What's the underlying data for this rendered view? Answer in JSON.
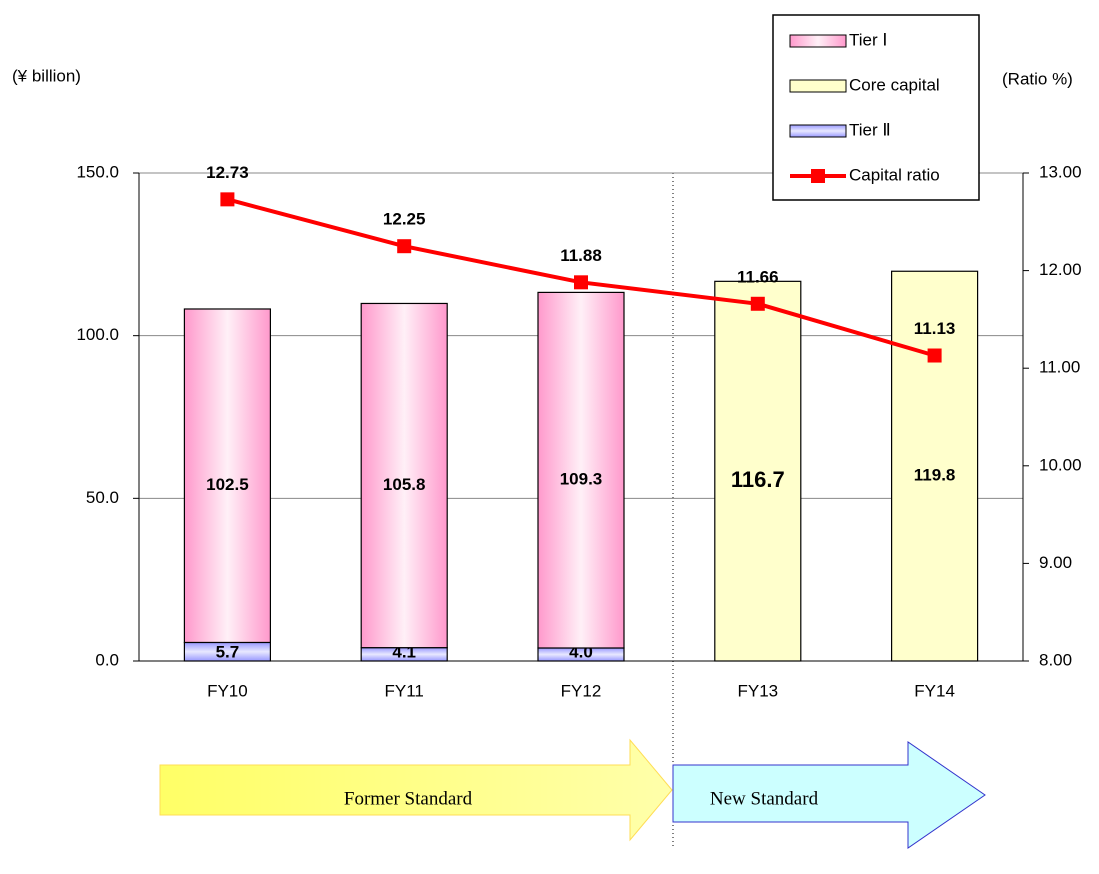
{
  "chart_data": {
    "type": "bar",
    "y_label": "(¥ billion)",
    "y2_label": "(Ratio %)",
    "categories": [
      "FY10",
      "FY11",
      "FY12",
      "FY13",
      "FY14"
    ],
    "series": [
      {
        "name": "Tier Ⅰ",
        "color": "#ff99cc",
        "values": [
          102.5,
          105.8,
          109.3,
          null,
          null
        ],
        "value_labels": [
          "102.5",
          "105.8",
          "109.3",
          null,
          null
        ]
      },
      {
        "name": "Core capital",
        "color": "#ffffcc",
        "values": [
          null,
          null,
          null,
          116.7,
          119.8
        ],
        "value_labels": [
          null,
          null,
          null,
          "116.7",
          "119.8"
        ]
      },
      {
        "name": "Tier Ⅱ",
        "color": "#9999ff",
        "values": [
          5.7,
          4.1,
          4.0,
          null,
          null
        ],
        "value_labels": [
          "5.7",
          "4.1",
          "4.0",
          null,
          null
        ]
      },
      {
        "name": "Capital ratio",
        "color": "#ff0000",
        "type": "line",
        "axis": "y2",
        "values": [
          12.73,
          12.25,
          11.88,
          11.66,
          11.13
        ],
        "value_labels": [
          "12.73",
          "12.25",
          "11.88",
          "11.66",
          "11.13"
        ]
      }
    ],
    "ylim": [
      0,
      150
    ],
    "yticks": [
      {
        "value": 0,
        "label": "0.0"
      },
      {
        "value": 50,
        "label": "50.0"
      },
      {
        "value": 100,
        "label": "100.0"
      },
      {
        "value": 150,
        "label": "150.0"
      }
    ],
    "y2lim": [
      8,
      13
    ],
    "y2ticks": [
      {
        "value": 8,
        "label": "8.00"
      },
      {
        "value": 9,
        "label": "9.00"
      },
      {
        "value": 10,
        "label": "10.00"
      },
      {
        "value": 11,
        "label": "11.00"
      },
      {
        "value": 12,
        "label": "12.00"
      },
      {
        "value": 13,
        "label": "13.00"
      }
    ],
    "grid": true,
    "legend": "top-right",
    "annotations": [
      "Former Standard",
      "New Standard"
    ]
  }
}
